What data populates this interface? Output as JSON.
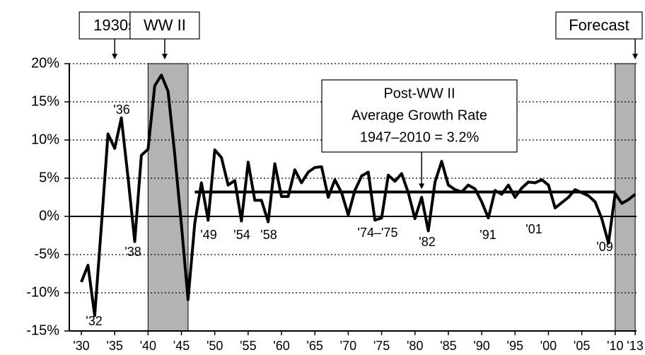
{
  "chart_data": {
    "type": "line",
    "x": [
      1930,
      1931,
      1932,
      1933,
      1934,
      1935,
      1936,
      1937,
      1938,
      1939,
      1940,
      1941,
      1942,
      1943,
      1944,
      1945,
      1946,
      1947,
      1948,
      1949,
      1950,
      1951,
      1952,
      1953,
      1954,
      1955,
      1956,
      1957,
      1958,
      1959,
      1960,
      1961,
      1962,
      1963,
      1964,
      1965,
      1966,
      1967,
      1968,
      1969,
      1970,
      1971,
      1972,
      1973,
      1974,
      1975,
      1976,
      1977,
      1978,
      1979,
      1980,
      1981,
      1982,
      1983,
      1984,
      1985,
      1986,
      1987,
      1988,
      1989,
      1990,
      1991,
      1992,
      1993,
      1994,
      1995,
      1996,
      1997,
      1998,
      1999,
      2000,
      2001,
      2002,
      2003,
      2004,
      2005,
      2006,
      2007,
      2008,
      2009,
      2010,
      2011,
      2012,
      2013
    ],
    "values": [
      -8.6,
      -6.4,
      -13.0,
      -1.3,
      10.8,
      8.9,
      12.9,
      5.1,
      -3.3,
      8.0,
      8.8,
      17.1,
      18.5,
      16.4,
      8.1,
      -1.1,
      -10.9,
      -0.9,
      4.4,
      -0.5,
      8.7,
      7.7,
      4.1,
      4.7,
      -0.6,
      7.1,
      2.1,
      2.1,
      -0.7,
      6.9,
      2.6,
      2.6,
      6.1,
      4.4,
      5.8,
      6.4,
      6.5,
      2.5,
      4.8,
      3.1,
      0.2,
      3.4,
      5.3,
      5.8,
      -0.5,
      -0.2,
      5.4,
      4.6,
      5.6,
      3.1,
      -0.3,
      2.5,
      -1.9,
      4.5,
      7.2,
      4.1,
      3.5,
      3.2,
      4.1,
      3.6,
      1.9,
      -0.2,
      3.4,
      2.9,
      4.1,
      2.5,
      3.7,
      4.5,
      4.4,
      4.8,
      4.1,
      1.1,
      1.8,
      2.5,
      3.5,
      3.1,
      2.7,
      1.9,
      -0.3,
      -3.5,
      3.0,
      1.7,
      2.2,
      2.9
    ],
    "color": "#000000",
    "xlim": [
      1928.2,
      2013.2
    ],
    "ylim": [
      -15,
      20
    ],
    "xticks": [
      {
        "value": 1930,
        "label": "'30"
      },
      {
        "value": 1935,
        "label": "'35"
      },
      {
        "value": 1940,
        "label": "'40"
      },
      {
        "value": 1945,
        "label": "'45"
      },
      {
        "value": 1950,
        "label": "'50"
      },
      {
        "value": 1955,
        "label": "'55"
      },
      {
        "value": 1960,
        "label": "'60"
      },
      {
        "value": 1965,
        "label": "'65"
      },
      {
        "value": 1970,
        "label": "'70"
      },
      {
        "value": 1975,
        "label": "'75"
      },
      {
        "value": 1980,
        "label": "'80"
      },
      {
        "value": 1985,
        "label": "'85"
      },
      {
        "value": 1990,
        "label": "'90"
      },
      {
        "value": 1995,
        "label": "'95"
      },
      {
        "value": 2000,
        "label": "'00"
      },
      {
        "value": 2005,
        "label": "'05"
      },
      {
        "value": 2010,
        "label": "'10"
      },
      {
        "value": 2013,
        "label": "'13"
      }
    ],
    "yticks": [
      {
        "value": 20,
        "label": "20%"
      },
      {
        "value": 15,
        "label": "15%"
      },
      {
        "value": 10,
        "label": "10%"
      },
      {
        "value": 5,
        "label": "5%"
      },
      {
        "value": 0,
        "label": "0%"
      },
      {
        "value": -5,
        "label": "-5%"
      },
      {
        "value": -10,
        "label": "-10%"
      },
      {
        "value": -15,
        "label": "-15%"
      }
    ],
    "grid": true,
    "shaded": [
      {
        "from": 1940,
        "to": 1946,
        "color": "#b3b3b3"
      },
      {
        "from": 2010,
        "to": 2013,
        "color": "#b3b3b3"
      }
    ],
    "average": {
      "value": 3.2,
      "from": 1947,
      "to": 2010,
      "lines": [
        "Post-WW II",
        "Average Growth Rate",
        "1947–2010 = 3.2%"
      ],
      "arrow_x": 1981
    },
    "period_labels": [
      {
        "text": "1930s",
        "x": 1935
      },
      {
        "text": "WW II",
        "x": 1942.5
      },
      {
        "text": "Forecast",
        "x": 2013
      }
    ],
    "year_labels": [
      "'32",
      "'36",
      "'38",
      "'49",
      "'54",
      "'58",
      "'74–'75",
      "'82",
      "'91",
      "'01",
      "'09"
    ]
  }
}
